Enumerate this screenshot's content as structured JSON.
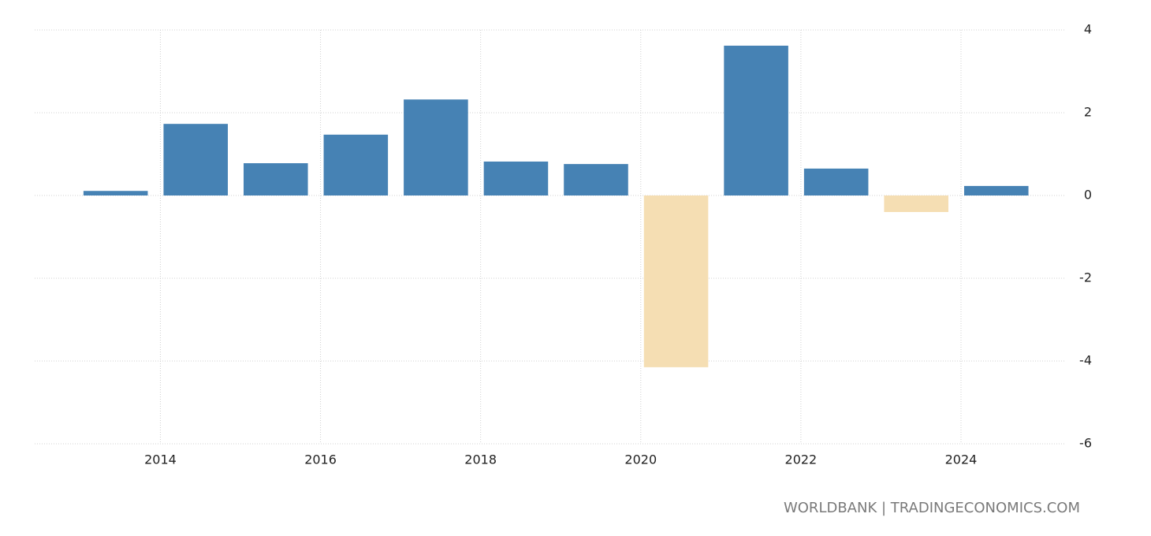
{
  "chart_data": {
    "type": "bar",
    "x": [
      2013,
      2014,
      2015,
      2016,
      2017,
      2018,
      2019,
      2020,
      2021,
      2022,
      2023,
      2024
    ],
    "values": [
      0.11,
      1.73,
      0.78,
      1.47,
      2.32,
      0.82,
      0.76,
      -4.15,
      3.62,
      0.65,
      -0.4,
      0.23
    ],
    "color": "#4682b4",
    "negative_color": "#f5deb3",
    "xlim": [
      2012.43,
      2025.29
    ],
    "xticks": [
      2014,
      2016,
      2018,
      2020,
      2022,
      2024
    ],
    "ylim": [
      -6,
      4
    ],
    "yticks": [
      -6,
      -4,
      -2,
      0,
      2,
      4
    ],
    "grid": true,
    "source": "WORLDBANK | TRADINGECONOMICS.COM"
  }
}
